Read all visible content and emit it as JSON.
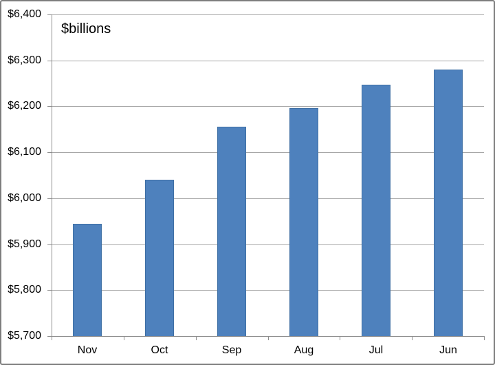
{
  "chart_data": {
    "type": "bar",
    "title": "",
    "annotation": "$billions",
    "categories": [
      "Nov",
      "Oct",
      "Sep",
      "Aug",
      "Jul",
      "Jun"
    ],
    "values": [
      5945,
      6040,
      6155,
      6196,
      6247,
      6280
    ],
    "series": [
      {
        "name": "",
        "values": [
          5945,
          6040,
          6155,
          6196,
          6247,
          6280
        ]
      }
    ],
    "xlabel": "",
    "ylabel": "$billions",
    "ylim": [
      5700,
      6400
    ],
    "y_tick_step": 100,
    "y_ticks": [
      6400,
      6300,
      6200,
      6100,
      6000,
      5900,
      5800,
      5700
    ],
    "y_tick_labels": [
      "$6,400",
      "$6,300",
      "$6,200",
      "$6,100",
      "$6,000",
      "$5,900",
      "$5,800",
      "$5,700"
    ],
    "grid": true,
    "legend_position": "none",
    "colors": {
      "bar_fill": "#4E81BD",
      "bar_border": "#3E6FA4",
      "gridline": "#A6A6A6",
      "axis": "#8C8C8C",
      "text": "#000000",
      "frame_border": "#7D7D7D"
    }
  }
}
